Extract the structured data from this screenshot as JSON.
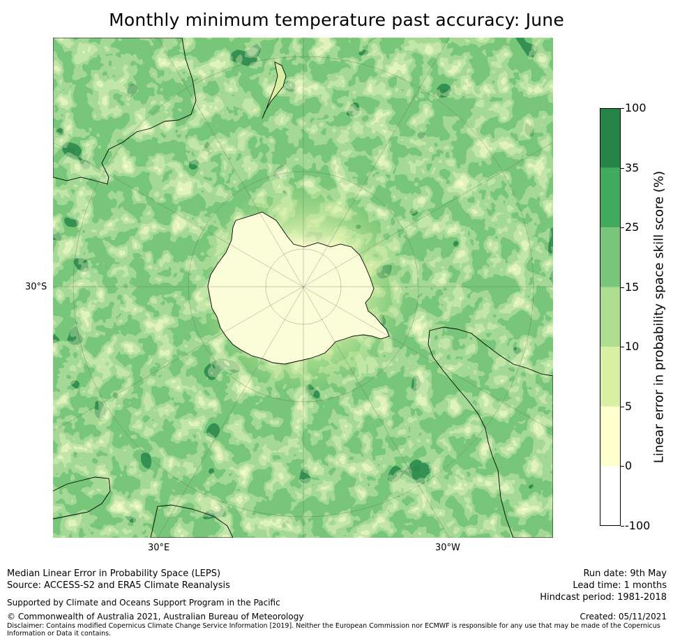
{
  "title": "Monthly minimum temperature past accuracy: June",
  "axes": {
    "lat_label": "30°S",
    "lon_labels": [
      "30°E",
      "30°W"
    ]
  },
  "colorbar": {
    "label": "Linear error in probability space skill score (%)",
    "ticks": [
      "100",
      "35",
      "25",
      "15",
      "10",
      "5",
      "0",
      "-100"
    ],
    "bins": [
      {
        "range": "35 to 100",
        "color": "#248446"
      },
      {
        "range": "25 to 35",
        "color": "#41ab5d"
      },
      {
        "range": "15 to 25",
        "color": "#78c679"
      },
      {
        "range": "10 to 15",
        "color": "#addd8e"
      },
      {
        "range": "5 to 10",
        "color": "#d9f0a3"
      },
      {
        "range": "0 to 5",
        "color": "#ffffcc"
      },
      {
        "range": "-100 to 0",
        "color": "#ffffff"
      }
    ]
  },
  "footer": {
    "line1": "Median Linear Error in Probability Space (LEPS)",
    "line2": "Source: ACCESS-S2 and ERA5 Climate Reanalysis",
    "support": "Supported by Climate and Oceans Support Program in the Pacific",
    "copyright": "© Commonwealth of Australia 2021, Australian Bureau of Meteorology",
    "disclaimer_1": "Disclaimer: Contains modified Copernicus Climate Change Service Information [2019]. Neither the European Commission nor ECMWF is responsible for any use that may be made of the Copernicus",
    "disclaimer_2": "Information or Data it contains.",
    "run_date": "Run date: 9th May",
    "lead_time": "Lead time: 1 months",
    "hindcast": "Hindcast period: 1981-2018",
    "created": "Created: 05/11/2021"
  }
}
